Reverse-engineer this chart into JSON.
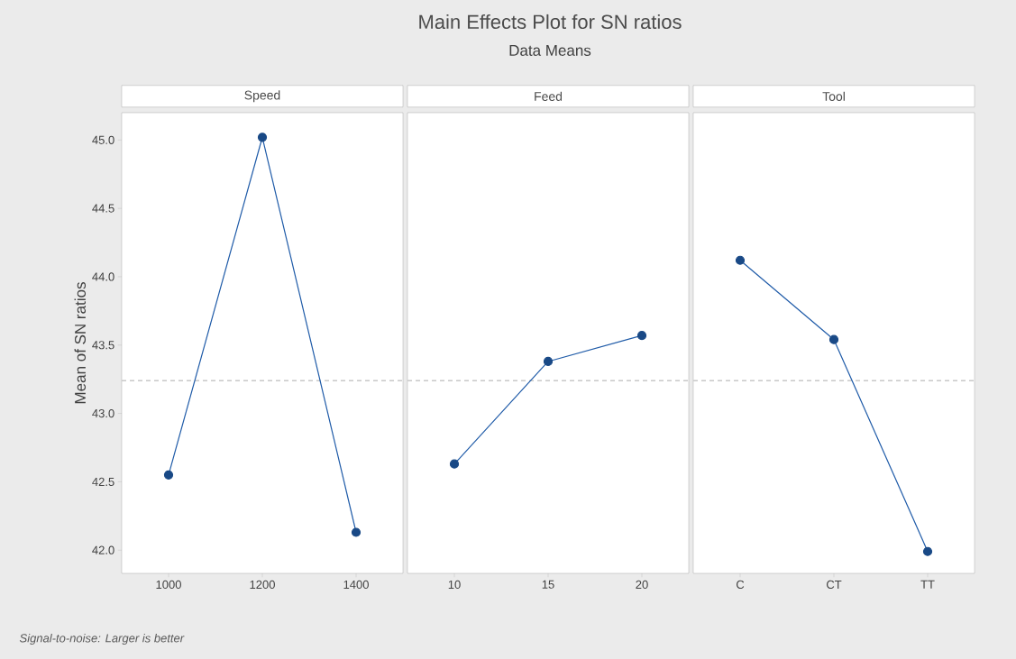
{
  "chart_data": [
    {
      "type": "line",
      "xlabel": "Speed",
      "ylabel": "Mean of SN ratios",
      "annotations": [
        "Signal-to-noise: Larger is better"
      ],
      "categories": [
        "1000",
        "1200",
        "1400"
      ],
      "values": [
        42.55,
        45.02,
        42.13
      ],
      "color": "#1f5ba8",
      "marker": "circle",
      "line_style": "solid",
      "grid": false,
      "ylim": [
        41.83,
        45.2
      ],
      "yticks": [
        {
          "value": 42.0,
          "label": "42.0"
        },
        {
          "value": 42.5,
          "label": "42.5"
        },
        {
          "value": 43.0,
          "label": "43.0"
        },
        {
          "value": 43.5,
          "label": "43.5"
        },
        {
          "value": 44.0,
          "label": "44.0"
        },
        {
          "value": 44.5,
          "label": "44.5"
        },
        {
          "value": 45.0,
          "label": "45.0"
        }
      ],
      "ref_lines": [
        {
          "axis": "y",
          "value": 43.24,
          "color": "#c8c8c8",
          "line_style": "dashed"
        }
      ]
    },
    {
      "type": "line",
      "title": "Main Effects Plot for SN ratios",
      "subtitle": "Data Means",
      "xlabel": "Feed",
      "categories": [
        "10",
        "15",
        "20"
      ],
      "values": [
        42.63,
        43.38,
        43.57
      ],
      "color": "#1f5ba8",
      "marker": "circle",
      "line_style": "solid",
      "grid": false,
      "tick_labels": "x",
      "ylim": [
        41.83,
        45.2
      ],
      "yticks": [
        {
          "value": 42.0,
          "label": null
        },
        {
          "value": 42.5,
          "label": null
        },
        {
          "value": 43.0,
          "label": null
        },
        {
          "value": 43.5,
          "label": null
        },
        {
          "value": 44.0,
          "label": null
        },
        {
          "value": 44.5,
          "label": null
        },
        {
          "value": 45.0,
          "label": null
        }
      ],
      "ref_lines": [
        {
          "axis": "y",
          "value": 43.24,
          "color": "#c8c8c8",
          "line_style": "dashed"
        }
      ]
    },
    {
      "type": "line",
      "xlabel": "Tool",
      "categories": [
        "C",
        "CT",
        "TT"
      ],
      "values": [
        44.12,
        43.54,
        41.99
      ],
      "color": "#1f5ba8",
      "marker": "circle",
      "line_style": "solid",
      "grid": false,
      "tick_labels": "x",
      "ylim": [
        41.83,
        45.2
      ],
      "yticks": [
        {
          "value": 42.0,
          "label": null
        },
        {
          "value": 42.5,
          "label": null
        },
        {
          "value": 43.0,
          "label": null
        },
        {
          "value": 43.5,
          "label": null
        },
        {
          "value": 44.0,
          "label": null
        },
        {
          "value": 44.5,
          "label": null
        },
        {
          "value": 45.0,
          "label": null
        }
      ],
      "ref_lines": [
        {
          "axis": "y",
          "value": 43.24,
          "color": "#c8c8c8",
          "line_style": "dashed"
        }
      ]
    }
  ]
}
